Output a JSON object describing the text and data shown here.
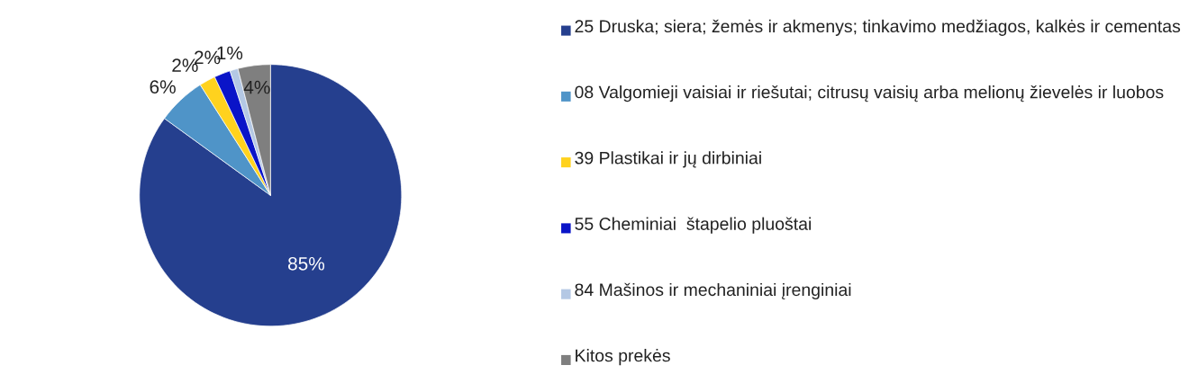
{
  "chart_data": {
    "type": "pie",
    "categories": [
      "25 Druska; siera; žemės ir akmenys; tinkavimo medžiagos, kalkės ir cementas",
      "08 Valgomieji vaisiai ir riešutai; citrusų vaisių arba melionų žievelės ir luobos",
      "39 Plastikai ir jų dirbiniai",
      "55 Cheminiai  štapelio pluoštai",
      "84 Mašinos ir mechaniniai įrenginiai",
      "Kitos prekės"
    ],
    "values": [
      85,
      6,
      2,
      2,
      1,
      4
    ],
    "colors": [
      "#253f8e",
      "#4f94c8",
      "#ffd21e",
      "#0a14c8",
      "#b4c8e4",
      "#7f7f7f"
    ],
    "data_labels": true,
    "value_labels": [
      "85%",
      "6%",
      "2%",
      "2%",
      "1%",
      "4%"
    ],
    "legend": "right"
  }
}
